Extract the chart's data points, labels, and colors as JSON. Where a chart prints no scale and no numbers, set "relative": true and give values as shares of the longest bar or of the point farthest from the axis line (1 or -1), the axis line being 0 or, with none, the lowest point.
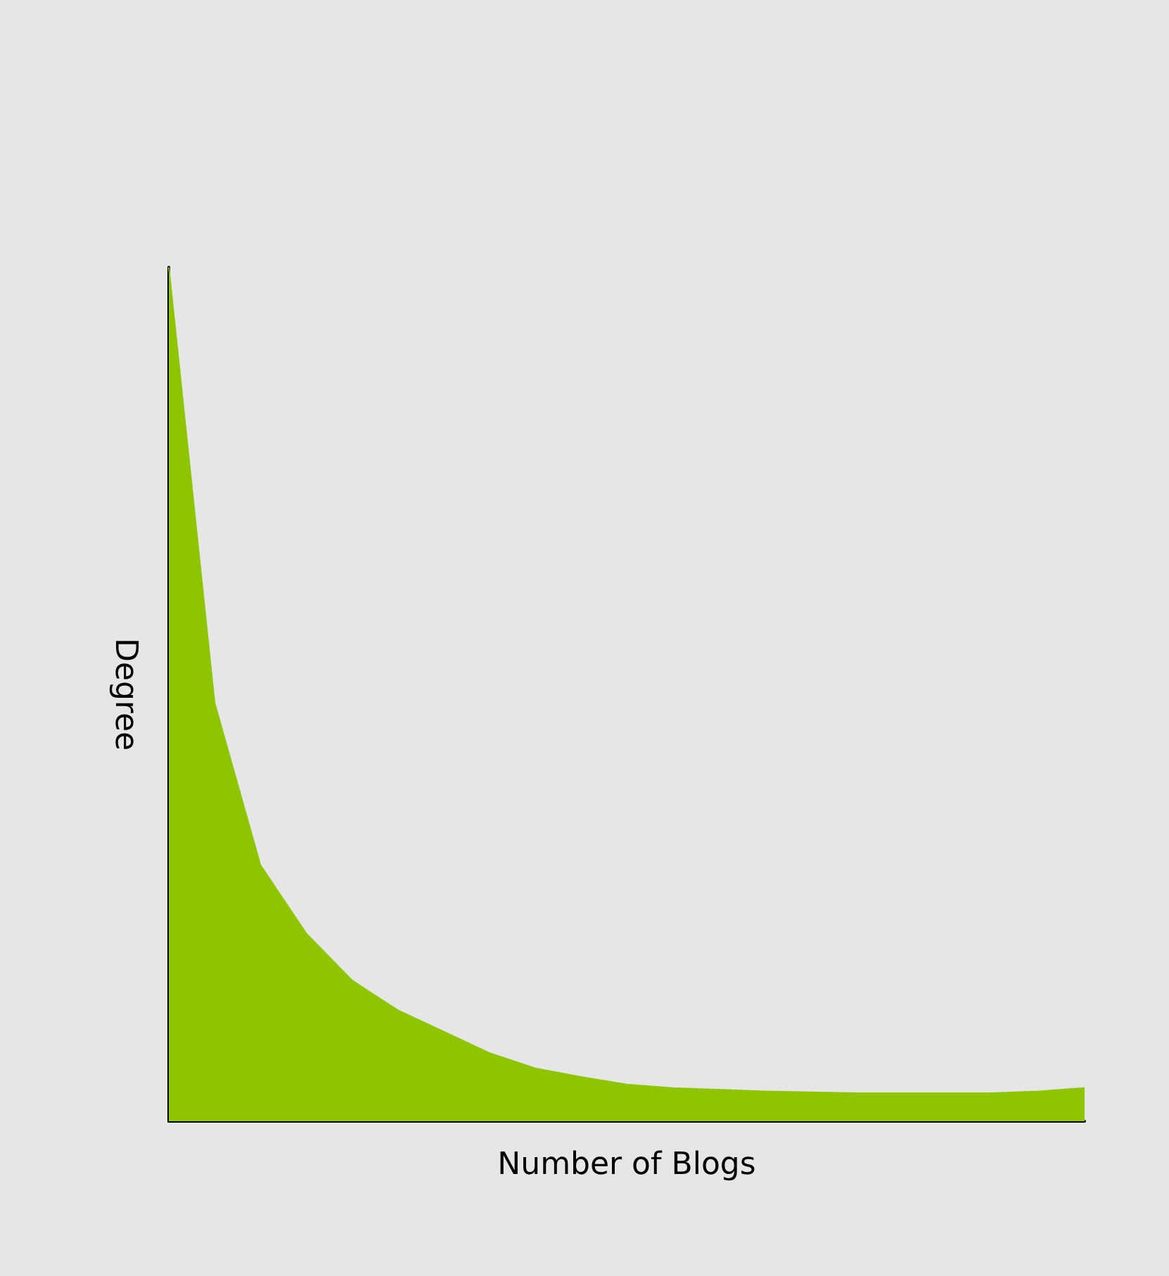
{
  "chart_data": {
    "type": "area",
    "relative": true,
    "xlabel": "Number of Blogs",
    "ylabel": "Degree",
    "categories": [
      null,
      null,
      null,
      null,
      null,
      null,
      null,
      null,
      null,
      null,
      null,
      null,
      null,
      null,
      null,
      null,
      null,
      null,
      null,
      null,
      null
    ],
    "series": [
      {
        "color": "#8dc600",
        "values": [
          1,
          0.49,
          0.3,
          0.22,
          0.165,
          0.13,
          0.105,
          0.08,
          0.062,
          0.052,
          0.043,
          0.039,
          0.037,
          0.035,
          0.034,
          0.033,
          0.033,
          0.033,
          0.033,
          0.035,
          0.039
        ]
      }
    ],
    "grid": false
  }
}
